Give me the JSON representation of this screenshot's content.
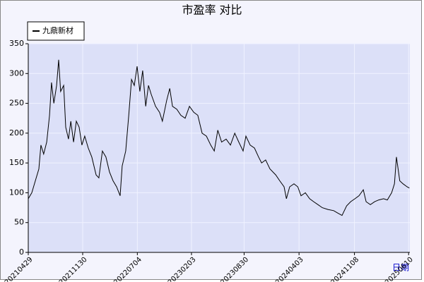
{
  "chart_data": {
    "type": "line",
    "title": "市盈率  对比",
    "x_label": "日期",
    "x": [
      "20210429",
      "20210513",
      "20210527",
      "20210610",
      "20210618",
      "20210629",
      "20210711",
      "20210722",
      "20210730",
      "20210808",
      "20210819",
      "20210827",
      "20210904",
      "20210916",
      "20210924",
      "20211005",
      "20211014",
      "20211025",
      "20211105",
      "20211116",
      "20211127",
      "20211208",
      "20211222",
      "20220105",
      "20220122",
      "20220202",
      "20220216",
      "20220302",
      "20220316",
      "20220330",
      "20220413",
      "20220427",
      "20220505",
      "20220519",
      "20220531",
      "20220611",
      "20220622",
      "20220703",
      "20220714",
      "20220725",
      "20220806",
      "20220817",
      "20220828",
      "20220914",
      "20220930",
      "20221011",
      "20221028",
      "20221109",
      "20221120",
      "20221207",
      "20221223",
      "20230109",
      "20230126",
      "20230212",
      "20230228",
      "20230317",
      "20230403",
      "20230420",
      "20230504",
      "20230518",
      "20230602",
      "20230620",
      "20230707",
      "20230724",
      "20230809",
      "20230826",
      "20230906",
      "20230923",
      "20231010",
      "20231026",
      "20231107",
      "20231123",
      "20231210",
      "20240102",
      "20240118",
      "20240204",
      "20240213",
      "20240226",
      "20240314",
      "20240329",
      "20240411",
      "20240428",
      "20240515",
      "20240531",
      "20240617",
      "20240704",
      "20240726",
      "20240818",
      "20240903",
      "20240920",
      "20241008",
      "20241024",
      "20241110",
      "20241126",
      "20241213",
      "20241224",
      "20250110",
      "20250127",
      "20250212",
      "20250303",
      "20250318",
      "20250404",
      "20250415",
      "20250423",
      "20250506",
      "20250519",
      "20250604",
      "20250613"
    ],
    "series": [
      {
        "name": "九鼎新材",
        "color": "#000000",
        "values": [
          90,
          100,
          120,
          140,
          180,
          165,
          185,
          230,
          285,
          250,
          280,
          323,
          270,
          280,
          210,
          190,
          220,
          185,
          220,
          210,
          180,
          195,
          175,
          160,
          130,
          125,
          170,
          160,
          135,
          120,
          110,
          95,
          145,
          170,
          230,
          290,
          280,
          312,
          270,
          305,
          245,
          280,
          265,
          245,
          235,
          220,
          255,
          275,
          245,
          240,
          230,
          225,
          245,
          235,
          230,
          200,
          195,
          180,
          170,
          205,
          185,
          190,
          180,
          200,
          185,
          170,
          195,
          180,
          175,
          160,
          150,
          155,
          140,
          130,
          120,
          110,
          90,
          110,
          115,
          110,
          95,
          100,
          90,
          85,
          80,
          75,
          72,
          70,
          66,
          62,
          78,
          85,
          90,
          95,
          105,
          85,
          80,
          85,
          88,
          90,
          88,
          100,
          115,
          160,
          120,
          115,
          110,
          108
        ]
      }
    ],
    "xlim": [
      "20210429",
      "20250615"
    ],
    "xticks": [
      "20210429",
      "20211130",
      "20220704",
      "20230203",
      "20230830",
      "20240403",
      "20241108",
      "20250610"
    ],
    "ylim": [
      0,
      350
    ],
    "yticks": [
      0,
      50,
      100,
      150,
      200,
      250,
      300,
      350
    ],
    "grid": true,
    "legend": "upper left"
  }
}
